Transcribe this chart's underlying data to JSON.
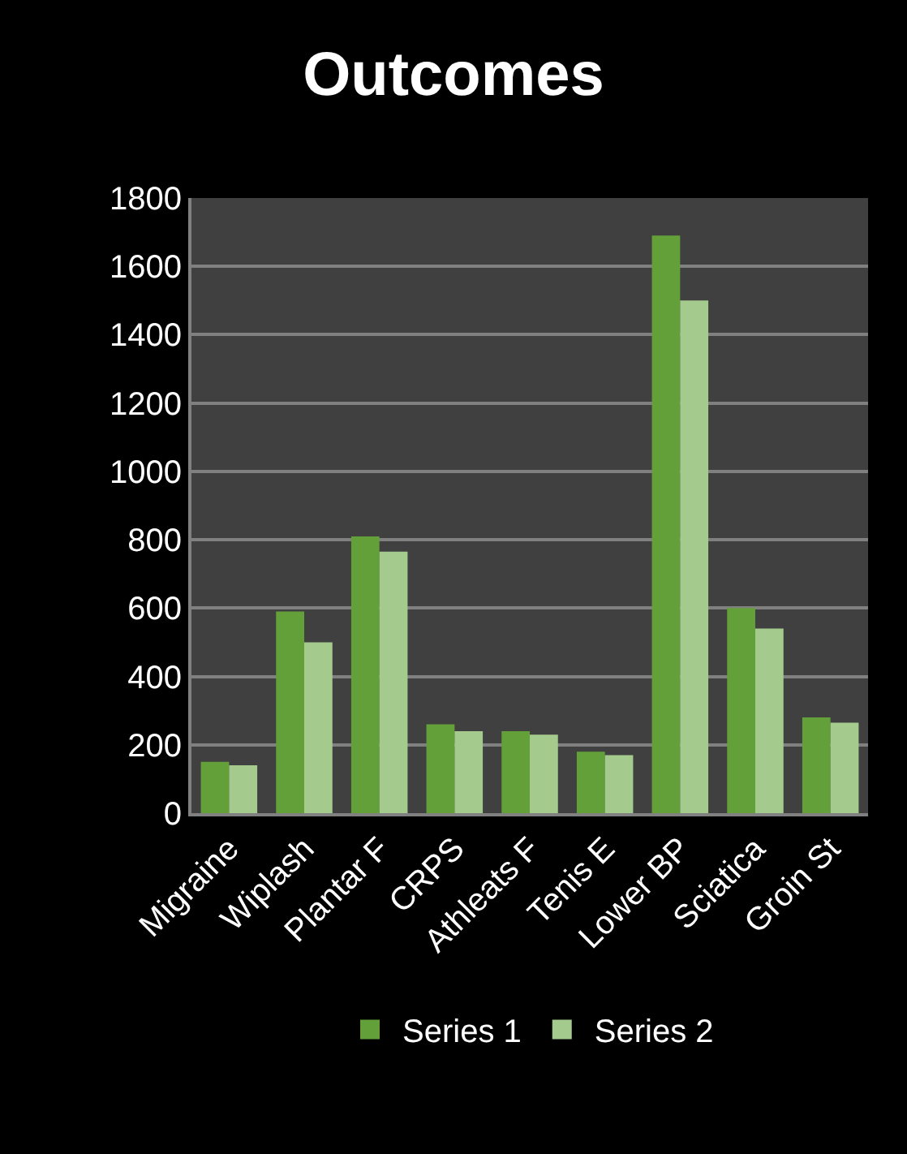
{
  "chart_data": {
    "type": "bar",
    "title": "Outcomes",
    "categories": [
      "Migraine",
      "Wiplash",
      "Plantar F",
      "CRPS",
      "Athleats F",
      "Tenis E",
      "Lower BP",
      "Sciatica",
      "Groin St"
    ],
    "series": [
      {
        "name": "Series 1",
        "color": "#63a03a",
        "values": [
          150,
          590,
          810,
          260,
          240,
          180,
          1690,
          600,
          280
        ]
      },
      {
        "name": "Series 2",
        "color": "#a5ca8e",
        "values": [
          140,
          500,
          765,
          240,
          230,
          170,
          1500,
          540,
          265
        ]
      }
    ],
    "ylim": [
      0,
      1800
    ],
    "yticks": [
      0,
      200,
      400,
      600,
      800,
      1000,
      1200,
      1400,
      1600,
      1800
    ],
    "grid": "y",
    "legend": "bottom"
  }
}
